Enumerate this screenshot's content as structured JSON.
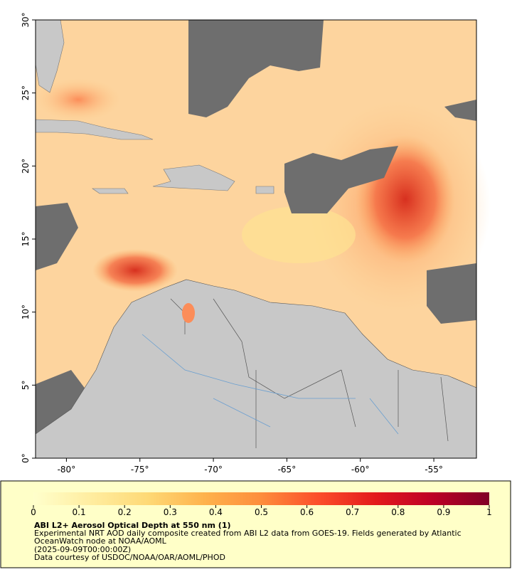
{
  "map": {
    "xlim": [
      -82.1,
      -52.1
    ],
    "ylim": [
      0,
      30
    ],
    "xticks": [
      {
        "value": -80,
        "label": "-80°"
      },
      {
        "value": -75,
        "label": "-75°"
      },
      {
        "value": -70,
        "label": "-70°"
      },
      {
        "value": -65,
        "label": "-65°"
      },
      {
        "value": -60,
        "label": "-60°"
      },
      {
        "value": -55,
        "label": "-55°"
      }
    ],
    "yticks": [
      {
        "value": 0,
        "label": "0°"
      },
      {
        "value": 5,
        "label": "5°"
      },
      {
        "value": 10,
        "label": "10°"
      },
      {
        "value": 15,
        "label": "15°"
      },
      {
        "value": 20,
        "label": "20°"
      },
      {
        "value": 25,
        "label": "25°"
      },
      {
        "value": 30,
        "label": "30°"
      }
    ]
  },
  "colorbar": {
    "range": [
      0,
      1
    ],
    "ticks": [
      0,
      0.1,
      0.2,
      0.3,
      0.4,
      0.5,
      0.6,
      0.7,
      0.8,
      0.9,
      1
    ],
    "colors": [
      "#ffffcc",
      "#ffeda0",
      "#fed976",
      "#feb24c",
      "#fd8d3c",
      "#fc4e2a",
      "#e31a1c",
      "#bd0026",
      "#800026"
    ]
  },
  "caption": {
    "title": "ABI L2+ Aerosol Optical Depth at 550 nm (1)",
    "lines": [
      "Experimental NRT AOD daily composite created from ABI L2 data from GOES-19. Fields generated by Atlantic",
      "OceanWatch node at NOAA/AOML",
      "(2025-09-09T00:00:00Z)",
      "Data courtesy of USDOC/NOAA/OAR/AOML/PHOD"
    ]
  }
}
